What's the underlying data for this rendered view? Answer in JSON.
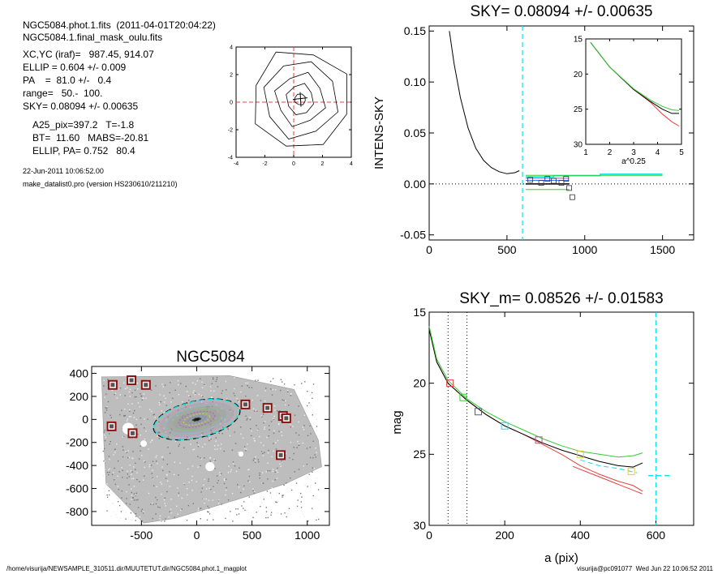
{
  "info": {
    "lines1": [
      "NGC5084.phot.1.fits  (2011-04-01T20:04:22)",
      "NGC5084.1.final_mask_oulu.fits"
    ],
    "lines2": [
      "XC,YC (iraf)=   987.45, 914.07",
      "ELLIP = 0.604 +/- 0.009",
      "PA    =  81.0 +/-   0.4",
      "range=   50.-  100.",
      "SKY= 0.08094 +/- 0.00635"
    ],
    "lines3": [
      "A25_pix=397.2   T=-1.8",
      "BT=  11.60   MABS=-20.81",
      "ELLIP, PA= 0.752   80.4"
    ],
    "date": "22-Jun-2011 10:06:52.00",
    "program": "make_datalist0.pro (version HS230610/211210)"
  },
  "footer": {
    "left": "/home/visurija/NEWSAMPLE_310511.dir/MUUTETUT.dir/NGC5084.phot.1_magplot",
    "right": "visurija@pc091077  Wed Jun 22 10:06:52 2011"
  },
  "colors": {
    "cyan": "#00e5ee",
    "red": "#e84040",
    "green": "#33cc33",
    "magenta": "#d040d0",
    "gray": "#888888",
    "square_red": "#8b1010"
  },
  "chart_data": [
    {
      "id": "contour",
      "type": "contour",
      "xlim": [
        -4,
        4
      ],
      "ylim": [
        -4,
        4
      ],
      "xticks": [
        "-4",
        "-2",
        "0",
        "2",
        "4"
      ],
      "yticks": [
        "-4",
        "-2",
        "0",
        "2",
        "4"
      ],
      "center": [
        0.45,
        0.2
      ]
    },
    {
      "id": "sky",
      "type": "line",
      "title": "SKY= 0.08094 +/- 0.00635",
      "xlabel": "",
      "ylabel": "INTENS-SKY",
      "xlim": [
        0,
        1700
      ],
      "ylim": [
        -0.055,
        0.155
      ],
      "xticks": [
        "0",
        "500",
        "1000",
        "1500"
      ],
      "yticks": [
        "-0.05",
        "0.00",
        "0.05",
        "0.10",
        "0.15"
      ],
      "sky_radius": 600,
      "profile": {
        "x": [
          130,
          160,
          200,
          250,
          300,
          350,
          400,
          450,
          500,
          550,
          580
        ],
        "y": [
          0.15,
          0.118,
          0.085,
          0.055,
          0.035,
          0.023,
          0.016,
          0.012,
          0.01,
          0.011,
          0.013
        ]
      },
      "squares": {
        "x": [
          650,
          720,
          760,
          800,
          850,
          880,
          900,
          920
        ],
        "y": [
          0.004,
          0.001,
          0.005,
          0.003,
          0.001,
          0.005,
          -0.004,
          -0.013
        ]
      },
      "inset": {
        "xlabel": "a^0.25",
        "xlim": [
          1,
          5
        ],
        "ylim": [
          15,
          30
        ],
        "xticks": [
          "1",
          "2",
          "3",
          "4",
          "5"
        ],
        "yticks": [
          "15",
          "20",
          "25",
          "30"
        ],
        "x": [
          1.2,
          2.0,
          3.0,
          3.7,
          4.2,
          4.6,
          4.9
        ],
        "black": [
          15.5,
          19.0,
          22.2,
          23.9,
          25.0,
          25.6,
          25.6
        ],
        "red": [
          15.5,
          19.0,
          22.2,
          24.0,
          25.7,
          26.8,
          27.4
        ],
        "green": [
          15.5,
          19.0,
          22.1,
          23.7,
          24.6,
          25.1,
          25.2
        ]
      }
    },
    {
      "id": "image",
      "type": "image",
      "title": "NGC5084",
      "xlim": [
        -950,
        1200
      ],
      "ylim": [
        -920,
        460
      ],
      "xticks": [
        "-500",
        "0",
        "500",
        "1000"
      ],
      "yticks": [
        "-800",
        "-600",
        "-400",
        "-200",
        "0",
        "200",
        "400"
      ],
      "ellipse": {
        "cx": 0,
        "cy": 0,
        "a": 400,
        "b": 160
      },
      "masks": [
        [
          -760,
          300
        ],
        [
          -590,
          340
        ],
        [
          -460,
          300
        ],
        [
          -770,
          -60
        ],
        [
          -580,
          -120
        ],
        [
          440,
          130
        ],
        [
          640,
          100
        ],
        [
          780,
          30
        ],
        [
          810,
          10
        ],
        [
          760,
          -310
        ]
      ]
    },
    {
      "id": "mag",
      "type": "line",
      "title": "SKY_m=  0.08526 +/- 0.01583",
      "xlabel": "a (pix)",
      "ylabel": "mag",
      "xlim": [
        0,
        700
      ],
      "ylim": [
        15,
        30
      ],
      "xticks": [
        "0",
        "200",
        "400",
        "600"
      ],
      "yticks": [
        "15",
        "20",
        "25",
        "30"
      ],
      "vlines": [
        50,
        100
      ],
      "sky_radius": 600,
      "x": [
        0,
        20,
        50,
        100,
        150,
        200,
        250,
        300,
        350,
        400,
        450,
        500,
        540,
        565
      ],
      "black": [
        16.2,
        18.5,
        20.0,
        21.2,
        22.2,
        23.0,
        23.6,
        24.2,
        24.7,
        25.1,
        25.5,
        25.8,
        25.9,
        25.6
      ],
      "red": [
        16.2,
        18.5,
        20.0,
        21.2,
        22.2,
        23.0,
        23.6,
        24.3,
        25.0,
        25.8,
        26.4,
        26.9,
        27.2,
        27.6
      ],
      "green": [
        16.0,
        18.3,
        19.8,
        21.1,
        22.0,
        22.7,
        23.3,
        23.9,
        24.4,
        24.8,
        25.0,
        25.2,
        25.1,
        24.9
      ],
      "cyan_dashed": {
        "x": [
          400,
          450,
          500,
          550
        ],
        "y": [
          25.4,
          25.8,
          26.0,
          26.3
        ]
      },
      "sky_level": {
        "x": [
          580,
          640
        ],
        "y": [
          26.5,
          26.5
        ]
      },
      "squares": [
        {
          "x": 55,
          "y": 20.0,
          "color": "red"
        },
        {
          "x": 90,
          "y": 21.0,
          "color": "green"
        },
        {
          "x": 130,
          "y": 22.0,
          "color": "blue"
        },
        {
          "x": 200,
          "y": 23.0,
          "color": "cyan"
        },
        {
          "x": 290,
          "y": 24.0,
          "color": "magenta"
        },
        {
          "x": 400,
          "y": 25.0,
          "color": "yellow"
        },
        {
          "x": 535,
          "y": 26.2,
          "color": "yellow"
        }
      ]
    }
  ]
}
